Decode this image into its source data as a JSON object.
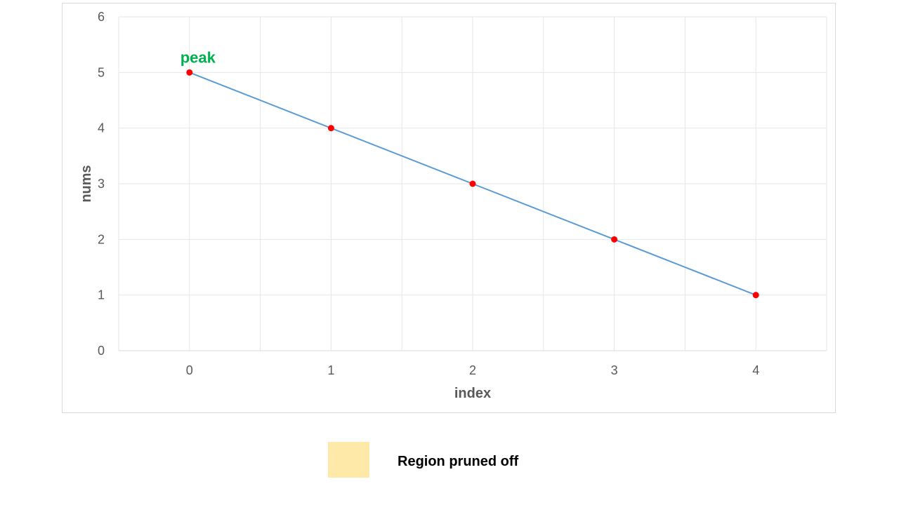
{
  "chart_data": {
    "type": "line",
    "title": "",
    "xlabel": "index",
    "ylabel": "nums",
    "x": [
      0,
      1,
      2,
      3,
      4
    ],
    "xlim": [
      -0.5,
      4.5
    ],
    "ylim": [
      0,
      6
    ],
    "y_ticks": [
      0,
      1,
      2,
      3,
      4,
      5,
      6
    ],
    "x_ticks": [
      0,
      1,
      2,
      3,
      4
    ],
    "grid": true,
    "series": [
      {
        "values": [
          5,
          4,
          3,
          2,
          1
        ],
        "line_color": "#5b9bd5",
        "marker_color": "#ff0000"
      }
    ],
    "annotations": [
      {
        "text": "peak",
        "x": 0,
        "y": 5,
        "color": "#00b050"
      }
    ]
  },
  "legend": {
    "label": "Region pruned off",
    "swatch_color": "#ffe9a8"
  }
}
